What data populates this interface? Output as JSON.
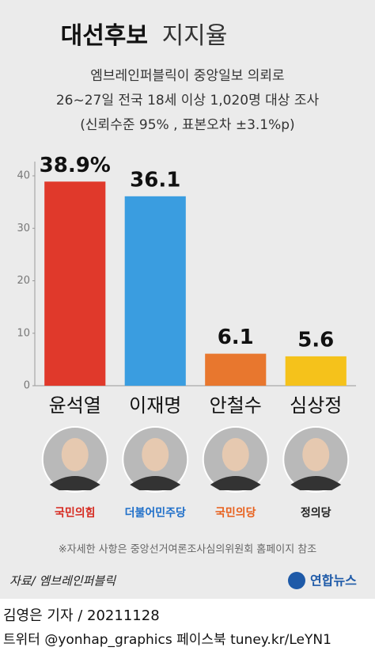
{
  "chart_data": {
    "type": "bar",
    "title_parts": [
      "대선후보",
      "지지율"
    ],
    "subtitle_lines": [
      "엠브레인퍼블릭이 중앙일보 의뢰로",
      "26~27일 전국 18세 이상 1,020명 대상 조사",
      "(신뢰수준 95% , 표본오차 ±3.1%p)"
    ],
    "categories": [
      "윤석열",
      "이재명",
      "안철수",
      "심상정"
    ],
    "values": [
      38.9,
      36.1,
      6.1,
      5.6
    ],
    "value_labels": [
      "38.9%",
      "36.1",
      "6.1",
      "5.6"
    ],
    "colors": [
      "#e0392b",
      "#3a9de0",
      "#e8772e",
      "#f5c21b"
    ],
    "parties": [
      "국민의힘",
      "더불어민주당",
      "국민의당",
      "정의당"
    ],
    "party_colors": [
      "#d62a20",
      "#1f6fc9",
      "#e8601c",
      "#222222"
    ],
    "ylim": [
      0,
      40
    ],
    "yticks": [
      0,
      10,
      20,
      30,
      40
    ],
    "note": "※자세한 사항은 중앙선거여론조사심의위원회 홈페이지 참조",
    "source": "자료/ 엠브레인퍼블릭",
    "logo": "연합뉴스"
  },
  "footer": {
    "byline": "김영은 기자 / 20211128",
    "social": "트위터 @yonhap_graphics  페이스북 tuney.kr/LeYN1"
  }
}
